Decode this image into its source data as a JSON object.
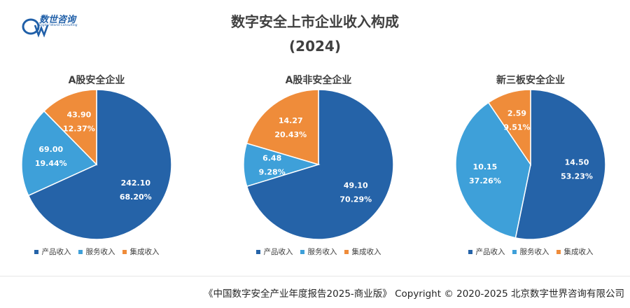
{
  "logo": {
    "name": "数世咨询",
    "tagline": "Digital World Consulting"
  },
  "title": "数字安全上市企业收入构成",
  "year": "(2024)",
  "colors": {
    "product": "#2563a8",
    "service": "#3ea0d9",
    "integration": "#ef8c3a"
  },
  "legend": [
    "产品收入",
    "服务收入",
    "集成收入"
  ],
  "footer": "《中国数字安全产业年度报告2025-商业版》 Copyright © 2020-2025 北京数字世界咨询有限公司",
  "chart_data": [
    {
      "type": "pie",
      "title": "A股安全企业",
      "labels": [
        "产品收入",
        "服务收入",
        "集成收入"
      ],
      "values": [
        242.1,
        69.0,
        43.9
      ],
      "value_labels": [
        "242.10",
        "69.00",
        "43.90"
      ],
      "percent_labels": [
        "68.20%",
        "19.44%",
        "12.37%"
      ]
    },
    {
      "type": "pie",
      "title": "A股非安全企业",
      "labels": [
        "产品收入",
        "服务收入",
        "集成收入"
      ],
      "values": [
        49.1,
        6.48,
        14.27
      ],
      "value_labels": [
        "49.10",
        "6.48",
        "14.27"
      ],
      "percent_labels": [
        "70.29%",
        "9.28%",
        "20.43%"
      ]
    },
    {
      "type": "pie",
      "title": "新三板安全企业",
      "labels": [
        "产品收入",
        "服务收入",
        "集成收入"
      ],
      "values": [
        14.5,
        10.15,
        2.59
      ],
      "value_labels": [
        "14.50",
        "10.15",
        "2.59"
      ],
      "percent_labels": [
        "53.23%",
        "37.26%",
        "9.51%"
      ]
    }
  ]
}
